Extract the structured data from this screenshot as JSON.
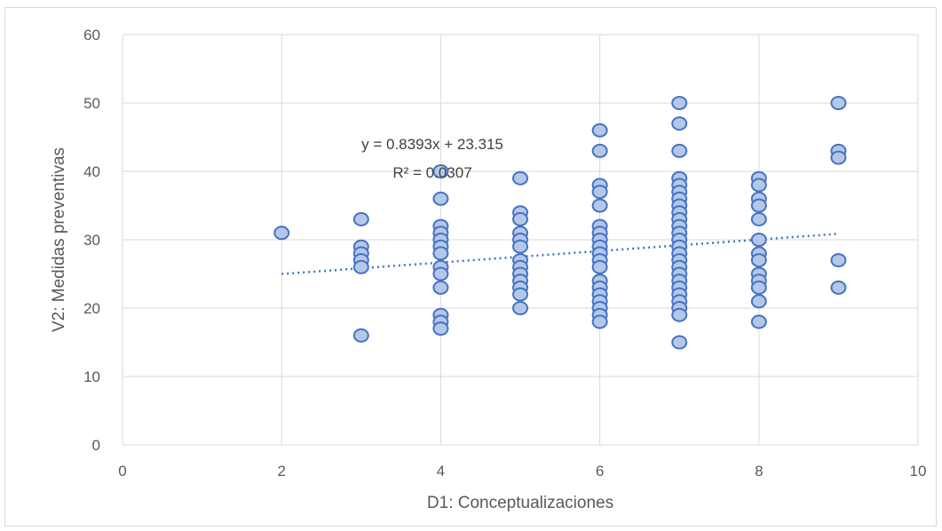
{
  "chart_data": {
    "type": "scatter",
    "title": "",
    "xlabel": "D1: Conceptualizaciones",
    "ylabel": "V2: Medidas preventivas",
    "xlim": [
      0,
      10
    ],
    "ylim": [
      0,
      60
    ],
    "xticks": [
      "0",
      "2",
      "4",
      "6",
      "8",
      "10"
    ],
    "yticks": [
      "0",
      "10",
      "20",
      "30",
      "40",
      "50",
      "60"
    ],
    "grid": true,
    "legend": "none",
    "points": [
      [
        2,
        31
      ],
      [
        3,
        33
      ],
      [
        3,
        29
      ],
      [
        3,
        28
      ],
      [
        3,
        27
      ],
      [
        3,
        26
      ],
      [
        3,
        16
      ],
      [
        4,
        40
      ],
      [
        4,
        36
      ],
      [
        4,
        32
      ],
      [
        4,
        31
      ],
      [
        4,
        30
      ],
      [
        4,
        29
      ],
      [
        4,
        28
      ],
      [
        4,
        26
      ],
      [
        4,
        25
      ],
      [
        4,
        23
      ],
      [
        4,
        19
      ],
      [
        4,
        18
      ],
      [
        4,
        17
      ],
      [
        5,
        39
      ],
      [
        5,
        34
      ],
      [
        5,
        33
      ],
      [
        5,
        31
      ],
      [
        5,
        30
      ],
      [
        5,
        29
      ],
      [
        5,
        27
      ],
      [
        5,
        26
      ],
      [
        5,
        25
      ],
      [
        5,
        24
      ],
      [
        5,
        23
      ],
      [
        5,
        22
      ],
      [
        5,
        20
      ],
      [
        6,
        46
      ],
      [
        6,
        43
      ],
      [
        6,
        38
      ],
      [
        6,
        37
      ],
      [
        6,
        35
      ],
      [
        6,
        32
      ],
      [
        6,
        31
      ],
      [
        6,
        30
      ],
      [
        6,
        29
      ],
      [
        6,
        28
      ],
      [
        6,
        27
      ],
      [
        6,
        26
      ],
      [
        6,
        24
      ],
      [
        6,
        23
      ],
      [
        6,
        22
      ],
      [
        6,
        21
      ],
      [
        6,
        20
      ],
      [
        6,
        19
      ],
      [
        6,
        18
      ],
      [
        7,
        50
      ],
      [
        7,
        47
      ],
      [
        7,
        43
      ],
      [
        7,
        39
      ],
      [
        7,
        38
      ],
      [
        7,
        37
      ],
      [
        7,
        36
      ],
      [
        7,
        35
      ],
      [
        7,
        34
      ],
      [
        7,
        33
      ],
      [
        7,
        32
      ],
      [
        7,
        31
      ],
      [
        7,
        30
      ],
      [
        7,
        29
      ],
      [
        7,
        28
      ],
      [
        7,
        27
      ],
      [
        7,
        26
      ],
      [
        7,
        25
      ],
      [
        7,
        24
      ],
      [
        7,
        23
      ],
      [
        7,
        22
      ],
      [
        7,
        21
      ],
      [
        7,
        20
      ],
      [
        7,
        19
      ],
      [
        7,
        15
      ],
      [
        8,
        39
      ],
      [
        8,
        38
      ],
      [
        8,
        36
      ],
      [
        8,
        35
      ],
      [
        8,
        33
      ],
      [
        8,
        30
      ],
      [
        8,
        28
      ],
      [
        8,
        27
      ],
      [
        8,
        25
      ],
      [
        8,
        24
      ],
      [
        8,
        23
      ],
      [
        8,
        21
      ],
      [
        8,
        18
      ],
      [
        9,
        50
      ],
      [
        9,
        43
      ],
      [
        9,
        42
      ],
      [
        9,
        27
      ],
      [
        9,
        23
      ]
    ],
    "trendline": {
      "type": "linear",
      "slope": 0.8393,
      "intercept": 23.315,
      "x_range": [
        2,
        9
      ],
      "equation_label": "y = 0.8393x + 23.315",
      "r2_label": "R² = 0.0307"
    },
    "colors": {
      "marker_fill": "#b4c7e7",
      "marker_stroke": "#4472c4",
      "trendline": "#4472c4",
      "grid": "#d9d9d9"
    }
  }
}
